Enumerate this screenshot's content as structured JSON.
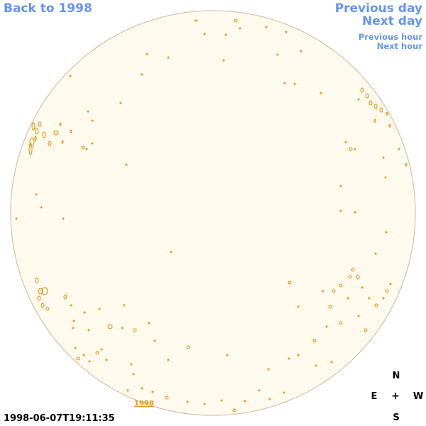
{
  "nav": {
    "back": "Back to 1998",
    "previous_day": "Previous day",
    "next_day": "Next day",
    "previous_hour": "Previous hour",
    "next_hour": "Next hour"
  },
  "timestamp": "1998-06-07T19:11:35",
  "year_label": "1998",
  "compass": {
    "north": "N",
    "south": "S",
    "east": "E",
    "west": "W",
    "center": "+"
  },
  "colors": {
    "disk_fill": "#fffaee",
    "disk_stroke": "#c8b8a0",
    "contour": "#e08a00",
    "link": "#6495ed"
  }
}
